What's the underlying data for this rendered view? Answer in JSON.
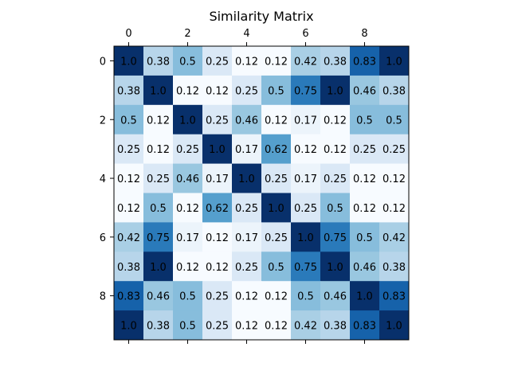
{
  "chart_data": {
    "type": "heatmap",
    "title": "Similarity Matrix",
    "colormap": "Blues",
    "value_range": [
      0.12,
      1.0
    ],
    "xlabel": "",
    "ylabel": "",
    "x_tick_labels": [
      "0",
      "2",
      "4",
      "6",
      "8"
    ],
    "y_tick_labels": [
      "0",
      "2",
      "4",
      "6",
      "8"
    ],
    "x_tick_positions": [
      0,
      2,
      4,
      6,
      8
    ],
    "y_tick_positions": [
      0,
      2,
      4,
      6,
      8
    ],
    "x_axis_position": "top",
    "rows": 10,
    "cols": 10,
    "matrix": [
      [
        "1.0",
        "0.38",
        "0.5",
        "0.25",
        "0.12",
        "0.12",
        "0.42",
        "0.38",
        "0.83",
        "1.0"
      ],
      [
        "0.38",
        "1.0",
        "0.12",
        "0.12",
        "0.25",
        "0.5",
        "0.75",
        "1.0",
        "0.46",
        "0.38"
      ],
      [
        "0.5",
        "0.12",
        "1.0",
        "0.25",
        "0.46",
        "0.12",
        "0.17",
        "0.12",
        "0.5",
        "0.5"
      ],
      [
        "0.25",
        "0.12",
        "0.25",
        "1.0",
        "0.17",
        "0.62",
        "0.12",
        "0.12",
        "0.25",
        "0.25"
      ],
      [
        "0.12",
        "0.25",
        "0.46",
        "0.17",
        "1.0",
        "0.25",
        "0.17",
        "0.25",
        "0.12",
        "0.12"
      ],
      [
        "0.12",
        "0.5",
        "0.12",
        "0.62",
        "0.25",
        "1.0",
        "0.25",
        "0.5",
        "0.12",
        "0.12"
      ],
      [
        "0.42",
        "0.75",
        "0.17",
        "0.12",
        "0.17",
        "0.25",
        "1.0",
        "0.75",
        "0.5",
        "0.42"
      ],
      [
        "0.38",
        "1.0",
        "0.12",
        "0.12",
        "0.25",
        "0.5",
        "0.75",
        "1.0",
        "0.46",
        "0.38"
      ],
      [
        "0.83",
        "0.46",
        "0.5",
        "0.25",
        "0.12",
        "0.12",
        "0.5",
        "0.46",
        "1.0",
        "0.83"
      ],
      [
        "1.0",
        "0.38",
        "0.5",
        "0.25",
        "0.12",
        "0.12",
        "0.42",
        "0.38",
        "0.83",
        "1.0"
      ]
    ]
  }
}
